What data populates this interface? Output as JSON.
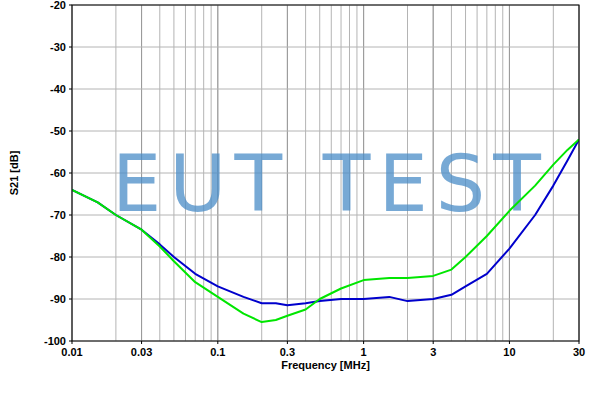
{
  "chart_data": {
    "type": "line",
    "x_label": "Frequency [MHz]",
    "y_label": "S21 [dB]",
    "annotations": [
      "EUT TEST"
    ],
    "x": [
      0.01,
      0.015,
      0.02,
      0.03,
      0.04,
      0.05,
      0.07,
      0.1,
      0.15,
      0.2,
      0.25,
      0.3,
      0.4,
      0.5,
      0.7,
      1,
      1.5,
      2,
      3,
      4,
      5,
      7,
      10,
      15,
      20,
      25,
      30
    ],
    "series": [
      {
        "color": "#0000cc",
        "values": [
          -64,
          -67,
          -70,
          -73.5,
          -77,
          -80,
          -84,
          -87,
          -89.5,
          -91,
          -91,
          -91.5,
          -91,
          -90.5,
          -90,
          -90,
          -89.5,
          -90.5,
          -90,
          -89,
          -87,
          -84,
          -78,
          -70,
          -63,
          -57,
          -52
        ]
      },
      {
        "color": "#00e600",
        "values": [
          -64,
          -67,
          -70,
          -73.5,
          -77.5,
          -81,
          -86,
          -89.5,
          -93.5,
          -95.5,
          -95,
          -94,
          -92.5,
          -90,
          -87.5,
          -85.5,
          -85,
          -85,
          -84.5,
          -83,
          -80,
          -75,
          -69,
          -63,
          -58,
          -54.5,
          -52
        ]
      }
    ],
    "xlim": [
      0.01,
      30
    ],
    "ylim": [
      -100,
      -20
    ],
    "xticks": [
      0.01,
      0.03,
      0.1,
      0.3,
      1,
      3,
      10,
      30
    ],
    "yticks": [
      -100,
      -90,
      -80,
      -70,
      -60,
      -50,
      -40,
      -30,
      -20
    ],
    "log": "x",
    "grid": true
  }
}
